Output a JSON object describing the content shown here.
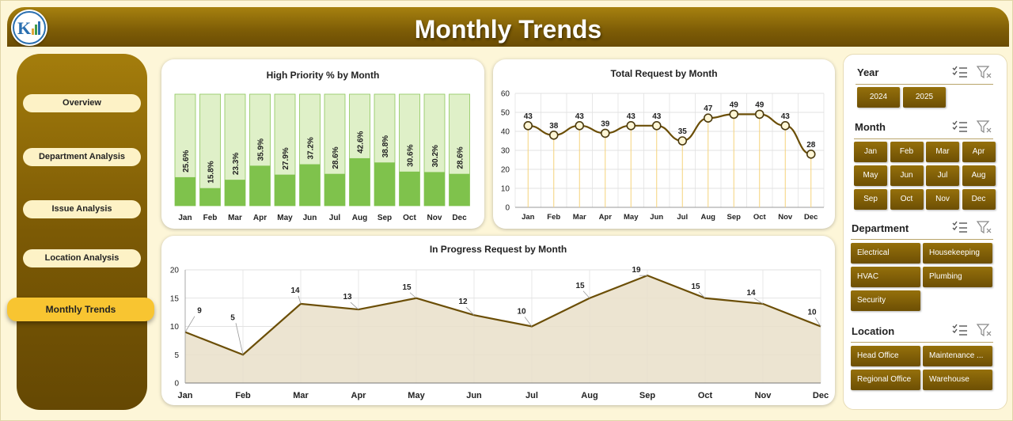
{
  "header": {
    "title": "Monthly Trends"
  },
  "sidebar": {
    "items": [
      {
        "label": "Overview"
      },
      {
        "label": "Department Analysis"
      },
      {
        "label": "Issue Analysis"
      },
      {
        "label": "Location Analysis"
      },
      {
        "label": "Monthly Trends",
        "active": true
      }
    ]
  },
  "slicers": {
    "year": {
      "title": "Year",
      "items": [
        "2024",
        "2025"
      ]
    },
    "month": {
      "title": "Month",
      "items": [
        "Jan",
        "Feb",
        "Mar",
        "Apr",
        "May",
        "Jun",
        "Jul",
        "Aug",
        "Sep",
        "Oct",
        "Nov",
        "Dec"
      ]
    },
    "department": {
      "title": "Department",
      "items": [
        "Electrical",
        "Housekeeping",
        "HVAC",
        "Plumbing",
        "Security"
      ]
    },
    "location": {
      "title": "Location",
      "items": [
        "Head Office",
        "Maintenance ...",
        "Regional Office",
        "Warehouse"
      ]
    }
  },
  "colors": {
    "brand_dark": "#7d5c06",
    "bar_fill": "#7fc24c",
    "bar_bg": "#dff0c8",
    "line": "#6b4e06",
    "area_fill": "#e9dfc9"
  },
  "chart_data": [
    {
      "type": "bar",
      "title": "High Priority % by Month",
      "categories": [
        "Jan",
        "Feb",
        "Mar",
        "Apr",
        "May",
        "Jun",
        "Jul",
        "Aug",
        "Sep",
        "Oct",
        "Nov",
        "Dec"
      ],
      "values": [
        25.6,
        15.8,
        23.3,
        35.9,
        27.9,
        37.2,
        28.6,
        42.6,
        38.8,
        30.6,
        30.2,
        28.6
      ],
      "labels": [
        "25.6%",
        "15.8%",
        "23.3%",
        "35.9%",
        "27.9%",
        "37.2%",
        "28.6%",
        "42.6%",
        "38.8%",
        "30.6%",
        "30.2%",
        "28.6%"
      ],
      "ylim": [
        0,
        100
      ],
      "background_bar": true
    },
    {
      "type": "line",
      "title": "Total Request by Month",
      "categories": [
        "Jan",
        "Feb",
        "Mar",
        "Apr",
        "May",
        "Jun",
        "Jul",
        "Aug",
        "Sep",
        "Oct",
        "Nov",
        "Dec"
      ],
      "values": [
        43,
        38,
        43,
        39,
        43,
        43,
        35,
        47,
        49,
        49,
        43,
        28
      ],
      "ylim": [
        0,
        60
      ],
      "yticks": [
        "0",
        "10",
        "20",
        "30",
        "40",
        "50",
        "60"
      ],
      "grid": true
    },
    {
      "type": "area",
      "title": "In Progress Request by Month",
      "categories": [
        "Jan",
        "Feb",
        "Mar",
        "Apr",
        "May",
        "Jun",
        "Jul",
        "Aug",
        "Sep",
        "Oct",
        "Nov",
        "Dec"
      ],
      "values": [
        9,
        5,
        14,
        13,
        15,
        12,
        10,
        15,
        19,
        15,
        14,
        10
      ],
      "ylim": [
        0,
        20
      ],
      "yticks": [
        "0",
        "5",
        "10",
        "15",
        "20"
      ],
      "grid": true
    }
  ]
}
